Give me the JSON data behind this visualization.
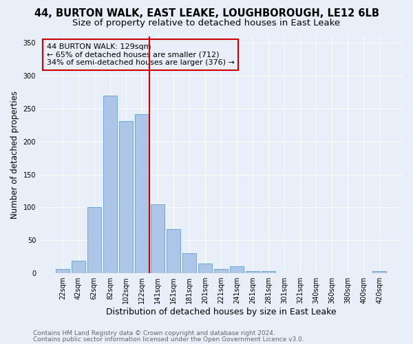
{
  "title1": "44, BURTON WALK, EAST LEAKE, LOUGHBOROUGH, LE12 6LB",
  "title2": "Size of property relative to detached houses in East Leake",
  "xlabel": "Distribution of detached houses by size in East Leake",
  "ylabel": "Number of detached properties",
  "footnote1": "Contains HM Land Registry data © Crown copyright and database right 2024.",
  "footnote2": "Contains public sector information licensed under the Open Government Licence v3.0.",
  "annotation_line1": "44 BURTON WALK: 129sqm",
  "annotation_line2": "← 65% of detached houses are smaller (712)",
  "annotation_line3": "34% of semi-detached houses are larger (376) →",
  "categories": [
    "22sqm",
    "42sqm",
    "62sqm",
    "82sqm",
    "102sqm",
    "122sqm",
    "141sqm",
    "161sqm",
    "181sqm",
    "201sqm",
    "221sqm",
    "241sqm",
    "261sqm",
    "281sqm",
    "301sqm",
    "321sqm",
    "340sqm",
    "360sqm",
    "380sqm",
    "400sqm",
    "420sqm"
  ],
  "values": [
    7,
    19,
    100,
    270,
    231,
    241,
    105,
    67,
    30,
    15,
    7,
    11,
    3,
    3,
    0,
    0,
    0,
    0,
    0,
    0,
    3
  ],
  "bar_color": "#adc6e8",
  "bar_edge_color": "#6aaad4",
  "vline_color": "#cc0000",
  "vline_x": 5.5,
  "box_color": "#cc0000",
  "background_color": "#e8eff8",
  "ylim": [
    0,
    360
  ],
  "yticks": [
    0,
    50,
    100,
    150,
    200,
    250,
    300,
    350
  ],
  "title1_fontsize": 10.5,
  "title2_fontsize": 9.5,
  "xlabel_fontsize": 9,
  "ylabel_fontsize": 8.5,
  "annotation_fontsize": 8,
  "footnote_fontsize": 6.5,
  "tick_fontsize": 7
}
